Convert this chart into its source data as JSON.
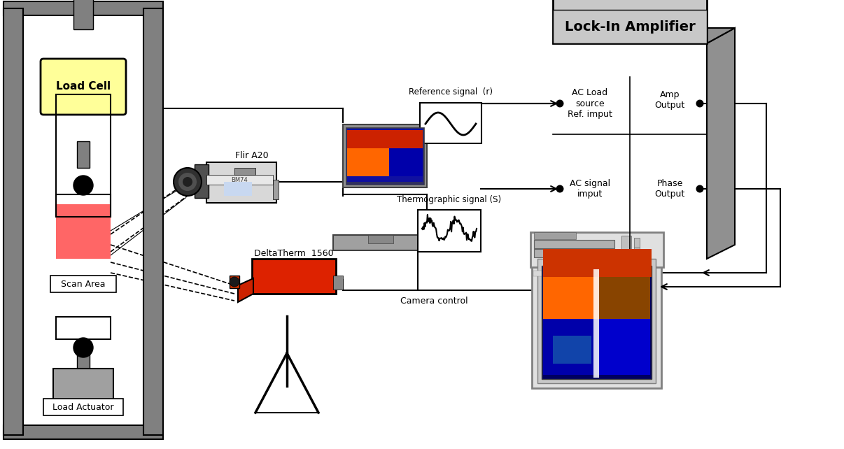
{
  "bg_color": "#ffffff",
  "fig_width": 12.06,
  "fig_height": 6.42,
  "load_cell_label": "Load Cell",
  "scan_area_label": "Scan Area",
  "load_actuator_label": "Load Actuator",
  "load_cell_bg": "#ffff99",
  "lock_in_title": "Lock-In Amplifier",
  "lock_in_text1": "AC Load\nsource\nRef. imput",
  "lock_in_text2": "Amp\nOutput",
  "lock_in_text3": "AC signal\nimput",
  "lock_in_text4": "Phase\nOutput",
  "ref_signal_label": "Reference signal  (r)",
  "thermo_signal_label": "Thermographic signal (S)",
  "camera_control_label": "Camera control",
  "flir_label": "Flir A20",
  "deltatherm_label": "DeltaTherm  1560",
  "frame_gray": "#808080",
  "frame_dark": "#606060",
  "light_gray": "#d0d0d0",
  "mid_gray": "#a0a0a0",
  "lock_in_gray": "#c8c8c8",
  "lock_in_side": "#909090"
}
